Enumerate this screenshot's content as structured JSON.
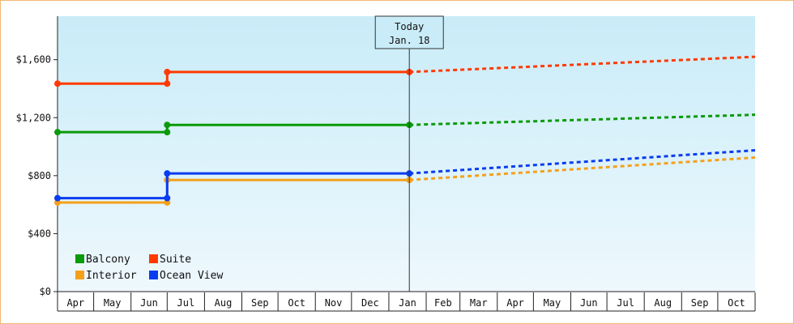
{
  "chart_data": {
    "type": "line",
    "title": "",
    "xlabel": "",
    "ylabel": "",
    "x_ticks": [
      "Apr",
      "May",
      "Jun",
      "Jul",
      "Aug",
      "Sep",
      "Oct",
      "Nov",
      "Dec",
      "Jan",
      "Feb",
      "Mar",
      "Apr",
      "May",
      "Jun",
      "Jul",
      "Aug",
      "Sep",
      "Oct"
    ],
    "x_range": [
      "2024-04-01",
      "2025-11-01"
    ],
    "y_ticks": [
      "$0",
      "$400",
      "$800",
      "$1,200",
      "$1,600"
    ],
    "ylim": [
      0,
      1900
    ],
    "grid": false,
    "legend_position": "bottom-left",
    "today_marker": {
      "line1": "Today",
      "line2": "Jan. 18",
      "date": "2025-01-18"
    },
    "series": [
      {
        "name": "Balcony",
        "color": "#0a9a0a",
        "actual": [
          [
            "2024-04-01",
            1100
          ],
          [
            "2024-07-01",
            1100
          ],
          [
            "2024-07-01",
            1150
          ],
          [
            "2025-01-18",
            1150
          ]
        ],
        "projected": [
          [
            "2025-01-18",
            1150
          ],
          [
            "2025-11-01",
            1220
          ]
        ]
      },
      {
        "name": "Suite",
        "color": "#ff3a00",
        "actual": [
          [
            "2024-04-01",
            1435
          ],
          [
            "2024-07-01",
            1435
          ],
          [
            "2024-07-01",
            1515
          ],
          [
            "2025-01-18",
            1515
          ]
        ],
        "projected": [
          [
            "2025-01-18",
            1515
          ],
          [
            "2025-11-01",
            1620
          ]
        ]
      },
      {
        "name": "Interior",
        "color": "#f5a01a",
        "actual": [
          [
            "2024-04-01",
            615
          ],
          [
            "2024-07-01",
            615
          ],
          [
            "2024-07-01",
            770
          ],
          [
            "2025-01-18",
            770
          ]
        ],
        "projected": [
          [
            "2025-01-18",
            770
          ],
          [
            "2025-11-01",
            925
          ]
        ]
      },
      {
        "name": "Ocean View",
        "color": "#0a3cf0",
        "actual": [
          [
            "2024-04-01",
            645
          ],
          [
            "2024-07-01",
            645
          ],
          [
            "2024-07-01",
            815
          ],
          [
            "2025-01-18",
            815
          ]
        ],
        "projected": [
          [
            "2025-01-18",
            815
          ],
          [
            "2025-11-01",
            975
          ]
        ]
      }
    ]
  }
}
